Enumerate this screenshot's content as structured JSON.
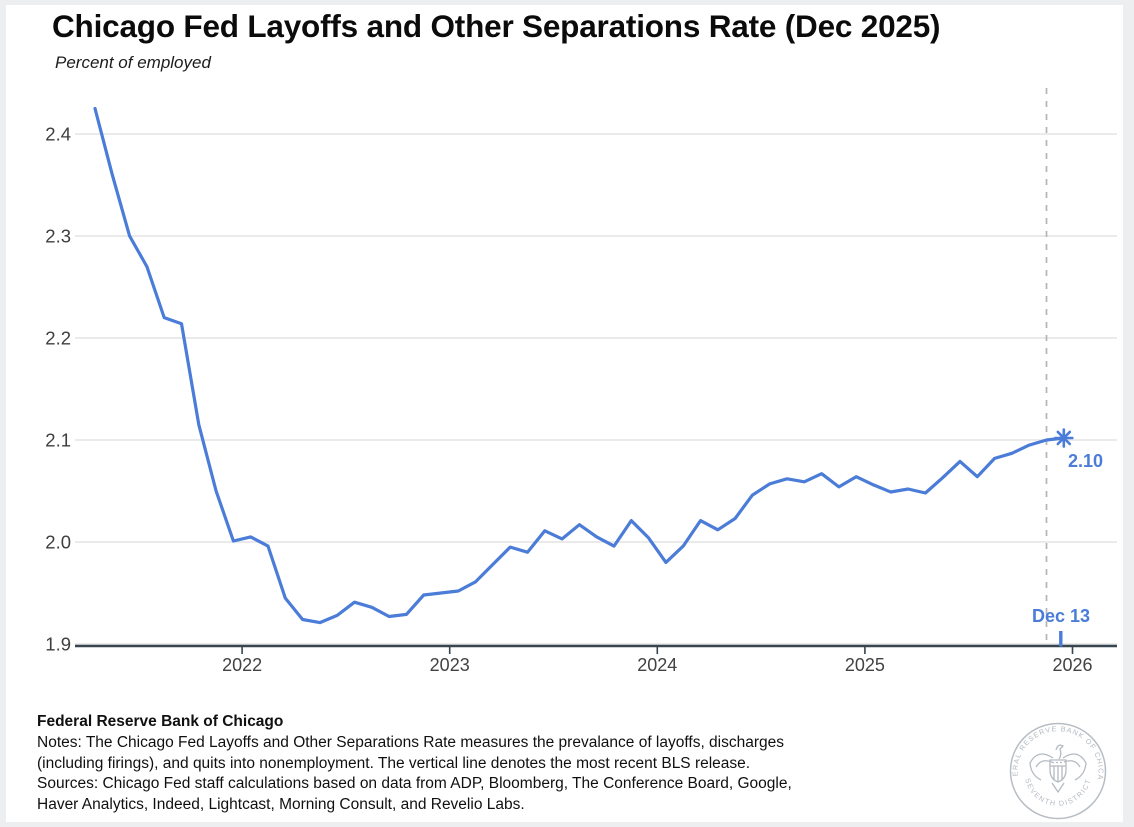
{
  "header": {
    "title": "Chicago Fed Layoffs and Other Separations Rate (Dec 2025)",
    "subtitle": "Percent of employed"
  },
  "chart_data": {
    "type": "line",
    "title": "Chicago Fed Layoffs and Other Separations Rate (Dec 2025)",
    "ylabel": "Percent of employed",
    "frequency": "monthly",
    "start": "2021-04",
    "end": "2025-12",
    "values": [
      2.425,
      2.36,
      2.3,
      2.27,
      2.22,
      2.214,
      2.115,
      2.05,
      2.001,
      2.005,
      1.996,
      1.945,
      1.924,
      1.921,
      1.928,
      1.941,
      1.936,
      1.927,
      1.929,
      1.948,
      1.95,
      1.952,
      1.961,
      1.978,
      1.995,
      1.99,
      2.011,
      2.003,
      2.017,
      2.005,
      1.996,
      2.021,
      2.004,
      1.98,
      1.996,
      2.021,
      2.012,
      2.023,
      2.046,
      2.057,
      2.062,
      2.059,
      2.067,
      2.054,
      2.064,
      2.056,
      2.049,
      2.052,
      2.048,
      2.063,
      2.079,
      2.064,
      2.082,
      2.087,
      2.095,
      2.1,
      2.102
    ],
    "y_ticks": [
      2.4,
      2.3,
      2.2,
      2.1,
      2.0,
      1.9
    ],
    "x_tick_labels": [
      "2022",
      "2023",
      "2024",
      "2025",
      "2026"
    ],
    "ylim": [
      1.9,
      2.445
    ],
    "grid": true,
    "legend": "none",
    "vline_note": "most recent BLS release (dashed vertical line)",
    "last_point": {
      "value": 2.1,
      "value_label": "2.10",
      "date_label": "Dec 13",
      "marker": "asterisk-star"
    },
    "line_color": "#4a7cd8"
  },
  "footer": {
    "org": "Federal Reserve Bank of Chicago",
    "notes_lines": [
      "Notes: The Chicago Fed Layoffs and Other Separations Rate measures the prevalance of layoffs, discharges",
      "(including firings), and quits into nonemployment. The vertical line denotes the most recent BLS release."
    ],
    "sources_lines": [
      "Sources: Chicago Fed staff calculations based on data from ADP, Bloomberg, The Conference Board, Google,",
      "Haver Analytics, Indeed, Lightcast, Morning Consult, and Revelio Labs."
    ]
  },
  "logo": {
    "ring_text_top": "FEDERAL RESERVE BANK OF CHICAGO",
    "ring_text_bottom": "SEVENTH DISTRICT"
  },
  "colors": {
    "line": "#4a7cd8",
    "annotation": "#4a7cd8",
    "axis": "#36454f",
    "gridline": "#e3e3e3",
    "dashed_line": "#b5b5b5",
    "seal": "#b7bdc4",
    "background": "#ffffff"
  }
}
